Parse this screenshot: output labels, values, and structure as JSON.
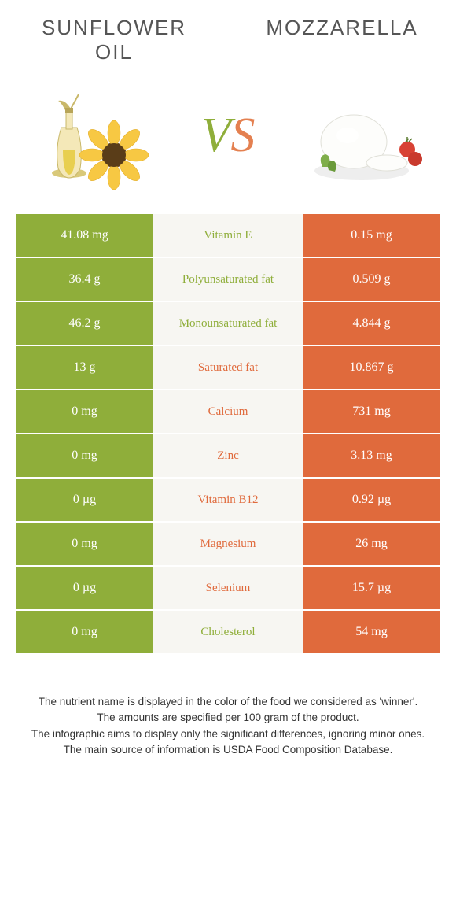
{
  "titles": {
    "left": "Sunflower oil",
    "right": "Mozzarella"
  },
  "vs": {
    "v": "V",
    "s": "S"
  },
  "colors": {
    "green": "#8fae3a",
    "orange": "#e06a3c",
    "mid_bg": "#f7f6f2",
    "title_text": "#555555",
    "footer_text": "#333333"
  },
  "rows": [
    {
      "left": "41.08 mg",
      "label": "Vitamin E",
      "winner": "green",
      "right": "0.15 mg"
    },
    {
      "left": "36.4 g",
      "label": "Polyunsaturated fat",
      "winner": "green",
      "right": "0.509 g"
    },
    {
      "left": "46.2 g",
      "label": "Monounsaturated fat",
      "winner": "green",
      "right": "4.844 g"
    },
    {
      "left": "13 g",
      "label": "Saturated fat",
      "winner": "orange",
      "right": "10.867 g"
    },
    {
      "left": "0 mg",
      "label": "Calcium",
      "winner": "orange",
      "right": "731 mg"
    },
    {
      "left": "0 mg",
      "label": "Zinc",
      "winner": "orange",
      "right": "3.13 mg"
    },
    {
      "left": "0 µg",
      "label": "Vitamin B12",
      "winner": "orange",
      "right": "0.92 µg"
    },
    {
      "left": "0 mg",
      "label": "Magnesium",
      "winner": "orange",
      "right": "26 mg"
    },
    {
      "left": "0 µg",
      "label": "Selenium",
      "winner": "orange",
      "right": "15.7 µg"
    },
    {
      "left": "0 mg",
      "label": "Cholesterol",
      "winner": "green",
      "right": "54 mg"
    }
  ],
  "footer": {
    "l1": "The nutrient name is displayed in the color of the food we considered as 'winner'.",
    "l2": "The amounts are specified per 100 gram of the product.",
    "l3": "The infographic aims to display only the significant differences, ignoring minor ones.",
    "l4": "The main source of information is USDA Food Composition Database."
  }
}
